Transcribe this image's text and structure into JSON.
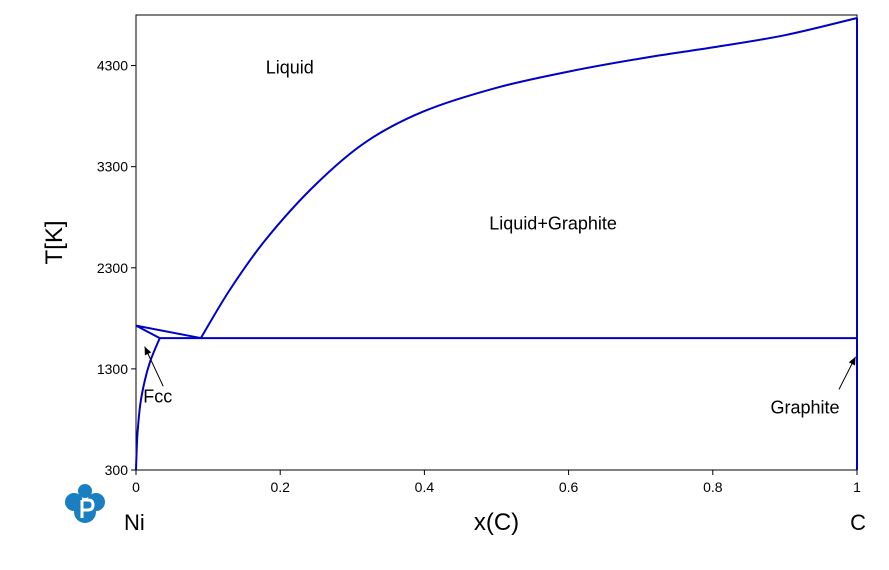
{
  "chart_data": {
    "type": "line",
    "xlabel": "x(C)",
    "ylabel": "T[K]",
    "xlim": [
      0,
      1
    ],
    "ylim": [
      300,
      4800
    ],
    "xticks": [
      {
        "value": 0,
        "label": "0"
      },
      {
        "value": 0.2,
        "label": "0.2"
      },
      {
        "value": 0.4,
        "label": "0.4"
      },
      {
        "value": 0.6,
        "label": "0.6"
      },
      {
        "value": 0.8,
        "label": "0.8"
      },
      {
        "value": 1,
        "label": "1"
      }
    ],
    "yticks": [
      {
        "value": 300,
        "label": "300"
      },
      {
        "value": 1300,
        "label": "1300"
      },
      {
        "value": 2300,
        "label": "2300"
      },
      {
        "value": 3300,
        "label": "3300"
      },
      {
        "value": 4300,
        "label": "4300"
      }
    ],
    "end_labels": {
      "left": "Ni",
      "right": "C"
    },
    "grid": false,
    "line_color": "#0000c8",
    "series": [
      {
        "points": [
          [
            0,
            1728
          ],
          [
            0.09,
            1605
          ],
          [
            0.13,
            2080
          ],
          [
            0.18,
            2580
          ],
          [
            0.25,
            3130
          ],
          [
            0.32,
            3550
          ],
          [
            0.4,
            3850
          ],
          [
            0.5,
            4080
          ],
          [
            0.6,
            4240
          ],
          [
            0.7,
            4370
          ],
          [
            0.8,
            4480
          ],
          [
            0.9,
            4600
          ],
          [
            1,
            4770
          ]
        ]
      },
      {
        "points": [
          [
            0,
            1728
          ],
          [
            0.033,
            1605
          ]
        ]
      },
      {
        "points": [
          [
            0,
            300
          ],
          [
            0.002,
            650
          ],
          [
            0.006,
            950
          ],
          [
            0.012,
            1180
          ],
          [
            0.02,
            1380
          ],
          [
            0.033,
            1605
          ]
        ]
      },
      {
        "points": [
          [
            0.033,
            1605
          ],
          [
            1,
            1605
          ]
        ]
      },
      {
        "points": [
          [
            1,
            300
          ],
          [
            1,
            4770
          ]
        ]
      }
    ],
    "annotations": [
      {
        "text": "Liquid",
        "x": 0.18,
        "y": 4220
      },
      {
        "text": "Liquid+Graphite",
        "x": 0.49,
        "y": 2680
      },
      {
        "text": "Fcc",
        "x": 0.01,
        "y": 970,
        "arrow_to": [
          0.012,
          1520
        ]
      },
      {
        "text": "Graphite",
        "x": 0.88,
        "y": 860,
        "arrow_to": [
          0.998,
          1420
        ]
      }
    ]
  }
}
